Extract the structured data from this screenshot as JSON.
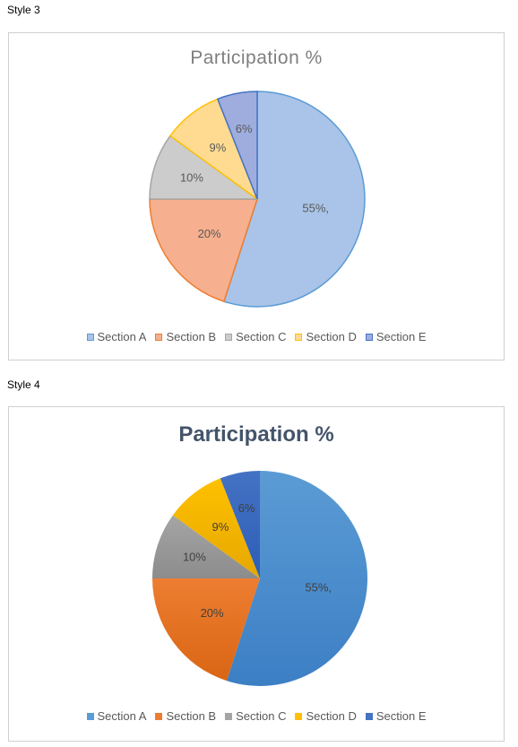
{
  "styles": [
    {
      "label": "Style 3",
      "chart_data": {
        "type": "pie",
        "title": "Participation  %",
        "categories": [
          "Section A",
          "Section B",
          "Section C",
          "Section D",
          "Section E"
        ],
        "values": [
          55,
          20,
          10,
          9,
          6
        ],
        "data_labels": [
          "55%,",
          "20%",
          "10%",
          "9%",
          "6%"
        ],
        "legend_position": "bottom",
        "fill_colors": [
          "#a9c4e8",
          "#f6b08f",
          "#cccccc",
          "#ffdb91",
          "#9fadde"
        ],
        "border_colors": [
          "#5b9bd5",
          "#ed7d31",
          "#a5a5a5",
          "#ffc000",
          "#4472c4"
        ],
        "label_color": "#595959"
      }
    },
    {
      "label": "Style 4",
      "chart_data": {
        "type": "pie",
        "title": "Participation %",
        "categories": [
          "Section A",
          "Section B",
          "Section C",
          "Section D",
          "Section E"
        ],
        "values": [
          55,
          20,
          10,
          9,
          6
        ],
        "data_labels": [
          "55%,",
          "20%",
          "10%",
          "9%",
          "6%"
        ],
        "legend_position": "bottom",
        "fill_colors": [
          "#5b9bd5",
          "#ed7d31",
          "#a5a5a5",
          "#ffc000",
          "#4472c4"
        ],
        "gradient_dark": [
          "#3c7fc4",
          "#d96614",
          "#8c8c8c",
          "#e6a800",
          "#2d5eb5"
        ],
        "label_color": "#404040"
      }
    }
  ]
}
